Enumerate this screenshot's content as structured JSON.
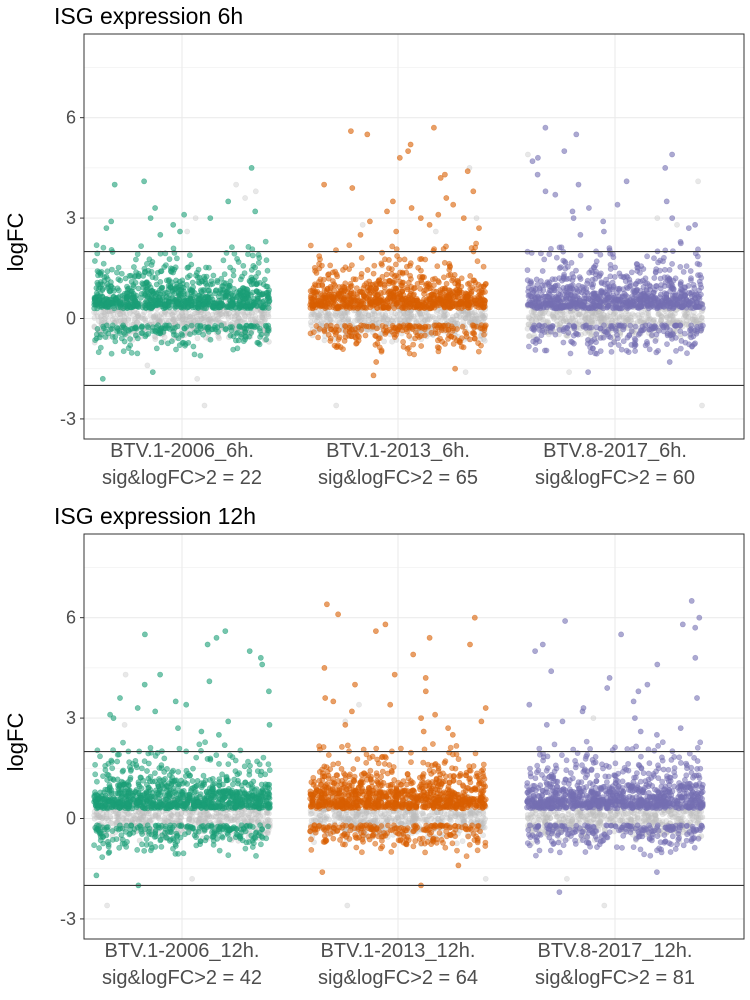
{
  "chart_data": [
    {
      "type": "scatter",
      "title": "ISG expression 6h",
      "ylabel": "logFC",
      "xlabel": "",
      "ylim": [
        -3.6,
        8.5
      ],
      "yticks": [
        -3,
        0,
        3,
        6
      ],
      "grid": true,
      "legend": "none",
      "hlines": [
        2,
        -2
      ],
      "categories": [
        {
          "label": "BTV.1-2006_6h.",
          "sublabel": "sig&logFC>2 = 22"
        },
        {
          "label": "BTV.1-2013_6h.",
          "sublabel": "sig&logFC>2 = 65"
        },
        {
          "label": "BTV.8-2017_6h.",
          "sublabel": "sig&logFC>2 = 60"
        }
      ],
      "series": [
        {
          "color": "#1b9e77",
          "significant_count": 1000,
          "nonsignificant_count": 520,
          "upper_outliers": [
            4.5,
            4.1,
            4.0,
            3.5,
            3.3,
            3.2,
            3.1,
            3.0,
            3.0,
            2.9,
            2.8,
            2.7,
            2.6,
            2.5
          ],
          "lower_outliers": [
            -1.6,
            -1.8
          ],
          "nonsig_outliers": [
            4.0,
            3.8,
            3.6,
            3.0,
            2.6,
            -1.4,
            -1.8,
            -2.6
          ]
        },
        {
          "color": "#d95f02",
          "significant_count": 1000,
          "nonsignificant_count": 520,
          "upper_outliers": [
            5.7,
            5.6,
            5.5,
            5.2,
            5.0,
            4.8,
            4.4,
            4.3,
            4.2,
            4.0,
            3.9,
            3.8,
            3.6,
            3.5,
            3.4,
            3.3,
            3.2,
            3.1,
            3.0,
            3.0,
            2.9,
            2.8,
            2.7,
            2.6,
            2.5
          ],
          "lower_outliers": [
            -1.3,
            -1.5,
            -1.7
          ],
          "nonsig_outliers": [
            4.5,
            3.0,
            2.8,
            2.6,
            -1.6,
            -2.6
          ]
        },
        {
          "color": "#7570b3",
          "significant_count": 1000,
          "nonsignificant_count": 520,
          "upper_outliers": [
            5.7,
            5.5,
            5.0,
            4.9,
            4.8,
            4.7,
            4.5,
            4.3,
            4.1,
            4.0,
            3.8,
            3.7,
            3.5,
            3.4,
            3.3,
            3.2,
            3.0,
            3.0,
            2.9,
            2.8,
            2.7,
            2.6,
            2.5
          ],
          "lower_outliers": [
            -1.3,
            -1.6
          ],
          "nonsig_outliers": [
            4.9,
            4.1,
            3.0,
            2.8,
            -1.6,
            -2.6
          ]
        }
      ]
    },
    {
      "type": "scatter",
      "title": "ISG expression 12h",
      "ylabel": "logFC",
      "xlabel": "",
      "ylim": [
        -3.6,
        8.5
      ],
      "yticks": [
        -3,
        0,
        3,
        6
      ],
      "grid": true,
      "legend": "none",
      "hlines": [
        2,
        -2
      ],
      "categories": [
        {
          "label": "BTV.1-2006_12h.",
          "sublabel": "sig&logFC>2 = 42"
        },
        {
          "label": "BTV.1-2013_12h.",
          "sublabel": "sig&logFC>2 = 64"
        },
        {
          "label": "BTV.8-2017_12h.",
          "sublabel": "sig&logFC>2 = 81"
        }
      ],
      "series": [
        {
          "color": "#1b9e77",
          "significant_count": 1100,
          "nonsignificant_count": 520,
          "upper_outliers": [
            5.6,
            5.5,
            5.4,
            5.2,
            5.0,
            4.8,
            4.6,
            4.3,
            4.1,
            4.0,
            3.8,
            3.6,
            3.5,
            3.4,
            3.3,
            3.2,
            3.1,
            3.0,
            2.9,
            2.8,
            2.7,
            2.6,
            2.5
          ],
          "lower_outliers": [
            -1.7,
            -2.0
          ],
          "nonsig_outliers": [
            4.3,
            2.8,
            -1.8,
            -2.6
          ]
        },
        {
          "color": "#d95f02",
          "significant_count": 1100,
          "nonsignificant_count": 520,
          "upper_outliers": [
            6.4,
            6.1,
            6.0,
            5.8,
            5.6,
            5.4,
            5.2,
            4.9,
            4.5,
            4.3,
            4.2,
            4.0,
            3.8,
            3.6,
            3.5,
            3.4,
            3.3,
            3.2,
            3.1,
            3.0,
            2.9,
            2.8,
            2.7,
            2.6,
            2.5
          ],
          "lower_outliers": [
            -1.4,
            -1.6,
            -2.0
          ],
          "nonsig_outliers": [
            3.4,
            2.9,
            -1.8,
            -2.6
          ]
        },
        {
          "color": "#7570b3",
          "significant_count": 1100,
          "nonsignificant_count": 520,
          "upper_outliers": [
            6.5,
            6.0,
            5.9,
            5.8,
            5.7,
            5.5,
            5.2,
            5.0,
            4.8,
            4.6,
            4.4,
            4.2,
            4.0,
            3.9,
            3.8,
            3.6,
            3.5,
            3.4,
            3.3,
            3.2,
            3.0,
            2.9,
            2.8,
            2.7,
            2.6,
            2.5
          ],
          "lower_outliers": [
            -1.6,
            -2.2
          ],
          "nonsig_outliers": [
            3.0,
            -1.8,
            -2.6
          ]
        }
      ]
    }
  ]
}
